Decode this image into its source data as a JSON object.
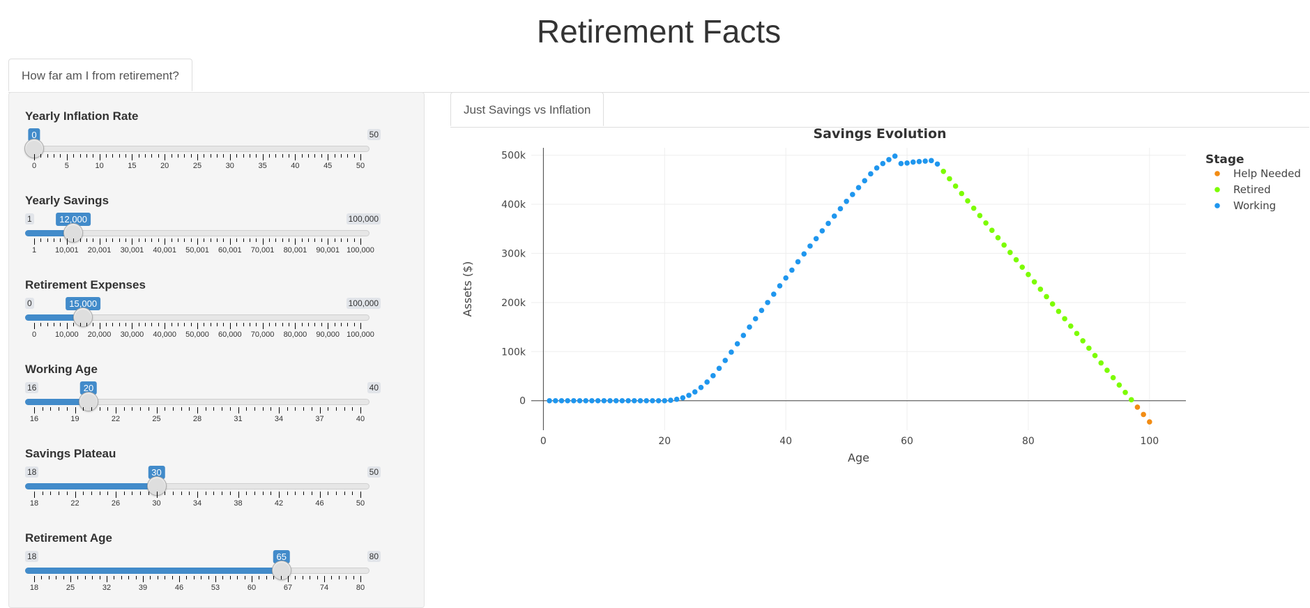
{
  "app": {
    "title": "Retirement Facts"
  },
  "top_tabs": [
    {
      "label": "How far am I from retirement?"
    }
  ],
  "sliders": [
    {
      "label": "Yearly Inflation Rate",
      "min": 0,
      "max": 50,
      "value": 0,
      "min_label": "",
      "max_label": "50",
      "value_label": "0",
      "ticks": [
        "0",
        "5",
        "10",
        "15",
        "20",
        "25",
        "30",
        "35",
        "40",
        "45",
        "50"
      ]
    },
    {
      "label": "Yearly Savings",
      "min": 1,
      "max": 100000,
      "value": 12000,
      "min_label": "1",
      "max_label": "100,000",
      "value_label": "12,000",
      "ticks": [
        "1",
        "10,001",
        "20,001",
        "30,001",
        "40,001",
        "50,001",
        "60,001",
        "70,001",
        "80,001",
        "90,001",
        "100,000"
      ]
    },
    {
      "label": "Retirement Expenses",
      "min": 0,
      "max": 100000,
      "value": 15000,
      "min_label": "0",
      "max_label": "100,000",
      "value_label": "15,000",
      "ticks": [
        "0",
        "10,000",
        "20,000",
        "30,000",
        "40,000",
        "50,000",
        "60,000",
        "70,000",
        "80,000",
        "90,000",
        "100,000"
      ]
    },
    {
      "label": "Working Age",
      "min": 16,
      "max": 40,
      "value": 20,
      "min_label": "16",
      "max_label": "40",
      "value_label": "20",
      "ticks": [
        "16",
        "19",
        "22",
        "25",
        "28",
        "31",
        "34",
        "37",
        "40"
      ]
    },
    {
      "label": "Savings Plateau",
      "min": 18,
      "max": 50,
      "value": 30,
      "min_label": "18",
      "max_label": "50",
      "value_label": "30",
      "ticks": [
        "18",
        "22",
        "26",
        "30",
        "34",
        "38",
        "42",
        "46",
        "50"
      ]
    },
    {
      "label": "Retirement Age",
      "min": 18,
      "max": 80,
      "value": 65,
      "min_label": "18",
      "max_label": "80",
      "value_label": "65",
      "ticks": [
        "18",
        "25",
        "32",
        "39",
        "46",
        "53",
        "60",
        "67",
        "74",
        "80"
      ]
    }
  ],
  "main_tabs": [
    {
      "label": "Just Savings vs Inflation"
    }
  ],
  "colors": {
    "accent": "#428bca",
    "working": "#1f96ee",
    "retired": "#7cfc00",
    "help_needed": "#f28c14"
  },
  "chart_data": {
    "type": "scatter",
    "title": "Savings Evolution",
    "xlabel": "Age",
    "ylabel": "Assets ($)",
    "xlim": [
      -2,
      106
    ],
    "ylim": [
      -60000,
      515000
    ],
    "xticks": [
      0,
      20,
      40,
      60,
      80,
      100
    ],
    "xtick_labels": [
      "0",
      "20",
      "40",
      "60",
      "80",
      "100"
    ],
    "yticks": [
      0,
      100000,
      200000,
      300000,
      400000,
      500000
    ],
    "ytick_labels": [
      "0",
      "100k",
      "200k",
      "300k",
      "400k",
      "500k"
    ],
    "grid": true,
    "legend": {
      "title": "Stage",
      "placement": "right",
      "entries": [
        "Help Needed",
        "Retired",
        "Working"
      ]
    },
    "series": [
      {
        "name": "Working",
        "color": "#1f96ee",
        "points": [
          [
            1,
            0
          ],
          [
            2,
            0
          ],
          [
            3,
            0
          ],
          [
            4,
            0
          ],
          [
            5,
            0
          ],
          [
            6,
            0
          ],
          [
            7,
            0
          ],
          [
            8,
            0
          ],
          [
            9,
            0
          ],
          [
            10,
            0
          ],
          [
            11,
            0
          ],
          [
            12,
            0
          ],
          [
            13,
            0
          ],
          [
            14,
            0
          ],
          [
            15,
            0
          ],
          [
            16,
            0
          ],
          [
            17,
            0
          ],
          [
            18,
            0
          ],
          [
            19,
            0
          ],
          [
            20,
            0
          ],
          [
            21,
            1000
          ],
          [
            22,
            3000
          ],
          [
            23,
            6000
          ],
          [
            24,
            11000
          ],
          [
            25,
            18000
          ],
          [
            26,
            27000
          ],
          [
            27,
            38000
          ],
          [
            28,
            51000
          ],
          [
            29,
            66000
          ],
          [
            30,
            82000
          ],
          [
            31,
            99000
          ],
          [
            32,
            116000
          ],
          [
            33,
            133000
          ],
          [
            34,
            150000
          ],
          [
            35,
            167000
          ],
          [
            36,
            184000
          ],
          [
            37,
            200000
          ],
          [
            38,
            217000
          ],
          [
            39,
            234000
          ],
          [
            40,
            250000
          ],
          [
            41,
            266000
          ],
          [
            42,
            283000
          ],
          [
            43,
            299000
          ],
          [
            44,
            315000
          ],
          [
            45,
            330000
          ],
          [
            46,
            346000
          ],
          [
            47,
            361000
          ],
          [
            48,
            376000
          ],
          [
            49,
            391000
          ],
          [
            50,
            406000
          ],
          [
            51,
            420000
          ],
          [
            52,
            434000
          ],
          [
            53,
            448000
          ],
          [
            54,
            462000
          ],
          [
            55,
            474000
          ],
          [
            56,
            483000
          ],
          [
            57,
            491000
          ],
          [
            58,
            498000
          ],
          [
            59,
            483000
          ],
          [
            60,
            484000
          ],
          [
            61,
            486000
          ],
          [
            62,
            487000
          ],
          [
            63,
            488000
          ],
          [
            64,
            489000
          ],
          [
            65,
            482000
          ]
        ]
      },
      {
        "name": "Retired",
        "color": "#7cfc00",
        "points": [
          [
            66,
            467000
          ],
          [
            67,
            452000
          ],
          [
            68,
            437000
          ],
          [
            69,
            422000
          ],
          [
            70,
            407000
          ],
          [
            71,
            392000
          ],
          [
            72,
            377000
          ],
          [
            73,
            362000
          ],
          [
            74,
            347000
          ],
          [
            75,
            332000
          ],
          [
            76,
            317000
          ],
          [
            77,
            302000
          ],
          [
            78,
            287000
          ],
          [
            79,
            272000
          ],
          [
            80,
            257000
          ],
          [
            81,
            242000
          ],
          [
            82,
            227000
          ],
          [
            83,
            212000
          ],
          [
            84,
            197000
          ],
          [
            85,
            182000
          ],
          [
            86,
            167000
          ],
          [
            87,
            152000
          ],
          [
            88,
            137000
          ],
          [
            89,
            122000
          ],
          [
            90,
            107000
          ],
          [
            91,
            92000
          ],
          [
            92,
            77000
          ],
          [
            93,
            62000
          ],
          [
            94,
            47000
          ],
          [
            95,
            32000
          ],
          [
            96,
            17000
          ],
          [
            97,
            2000
          ]
        ]
      },
      {
        "name": "Help Needed",
        "color": "#f28c14",
        "points": [
          [
            98,
            -13000
          ],
          [
            99,
            -28000
          ],
          [
            100,
            -43000
          ]
        ]
      }
    ]
  }
}
